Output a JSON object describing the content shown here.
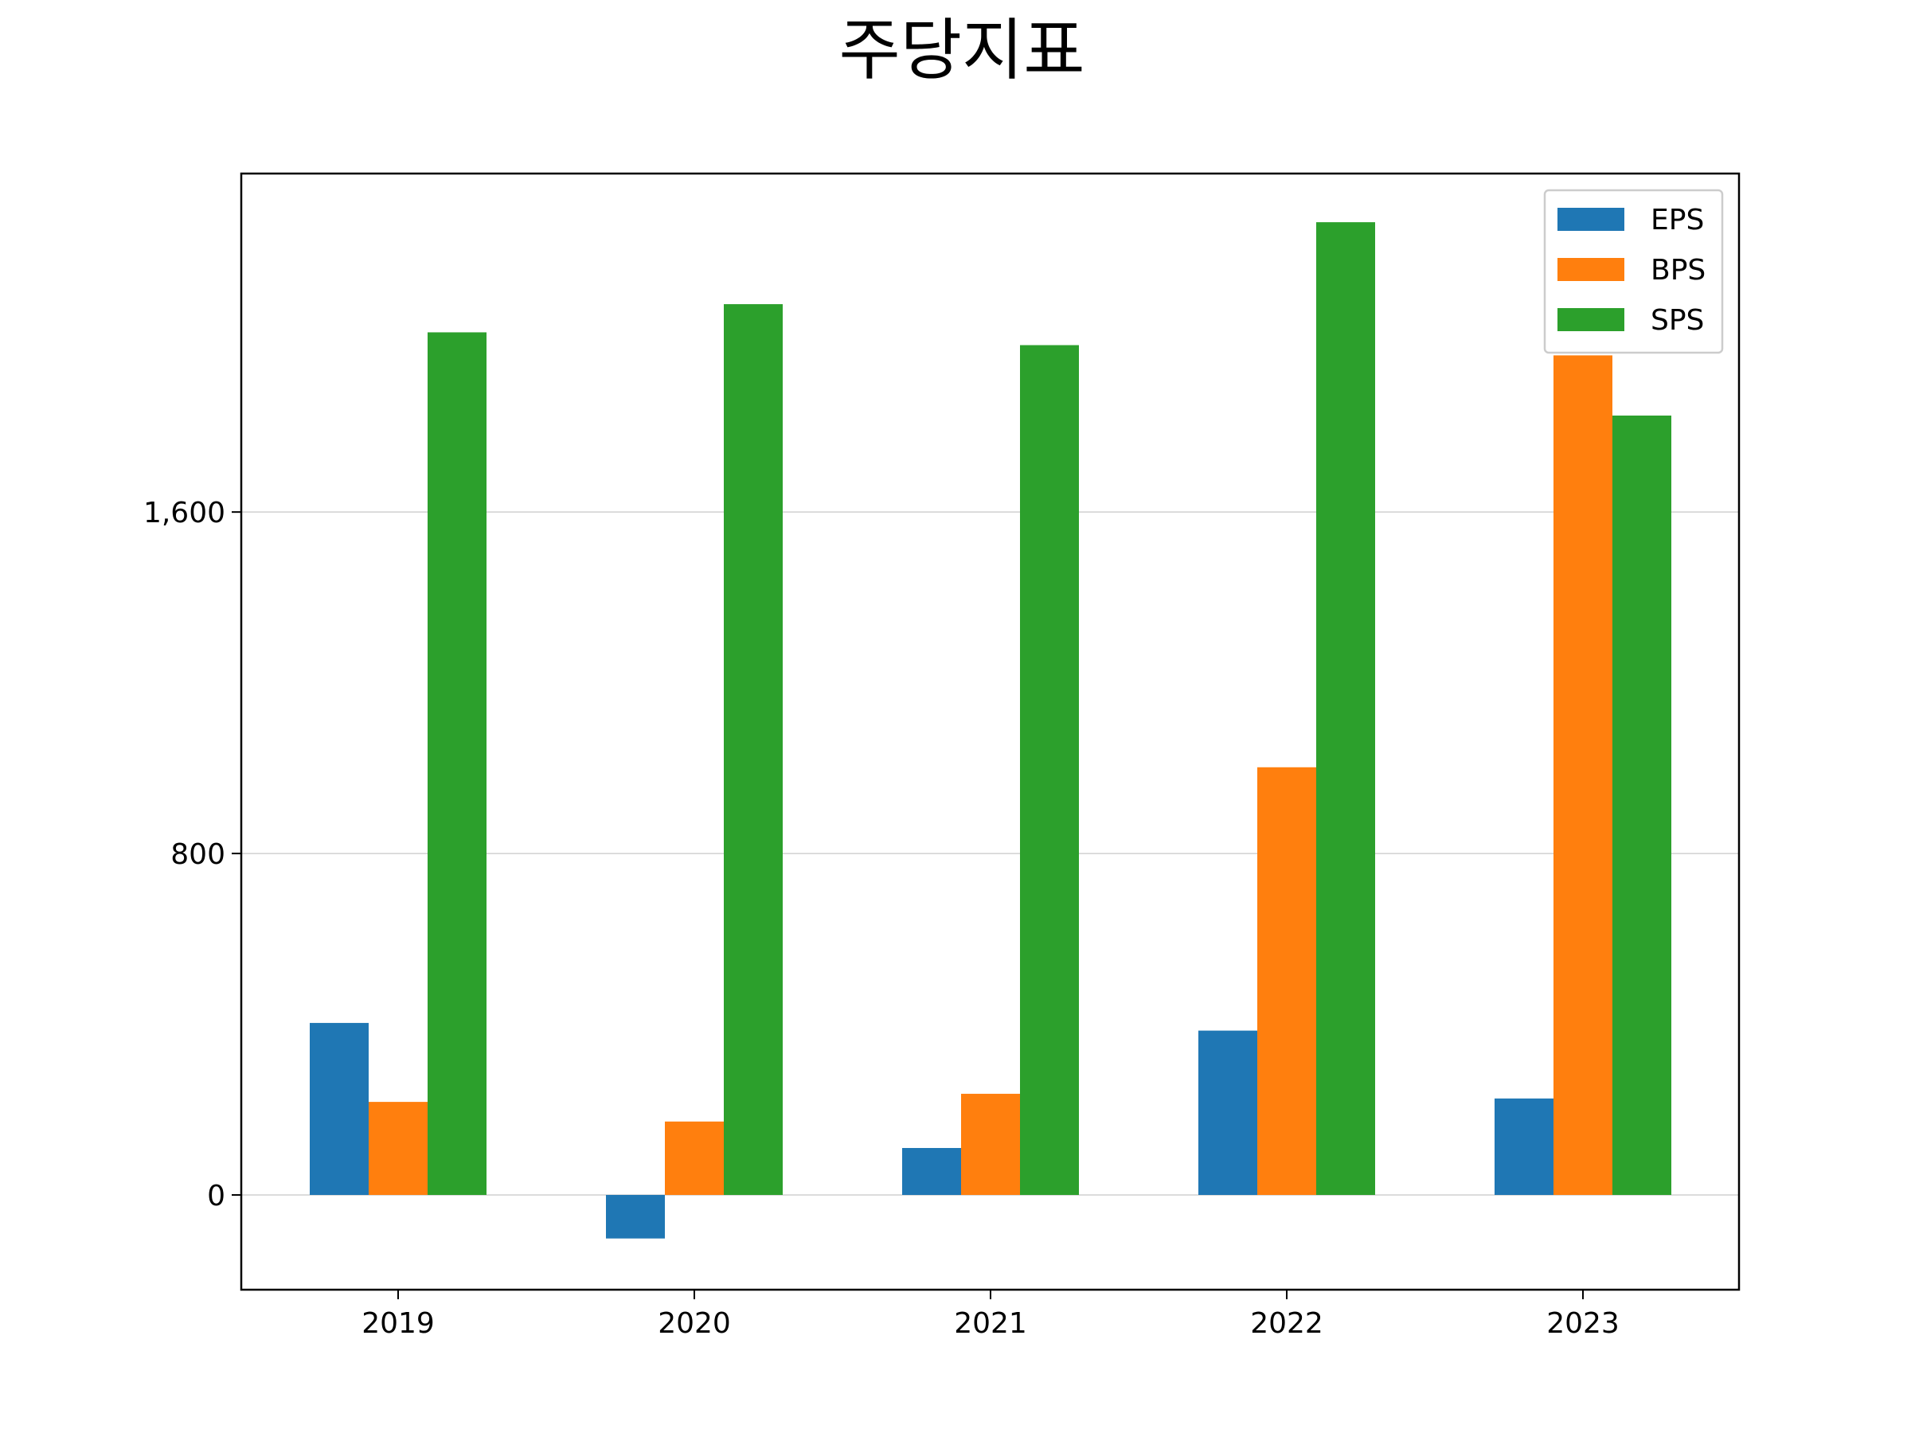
{
  "chart_data": {
    "type": "bar",
    "title": "주당지표",
    "xlabel": "",
    "ylabel": "",
    "categories": [
      "2019",
      "2020",
      "2021",
      "2022",
      "2023"
    ],
    "series": [
      {
        "name": "EPS",
        "color": "#1f77b4",
        "values": [
          403,
          -102,
          110,
          385,
          226
        ]
      },
      {
        "name": "BPS",
        "color": "#ff7f0e",
        "values": [
          218,
          172,
          237,
          1002,
          1967
        ]
      },
      {
        "name": "SPS",
        "color": "#2ca02c",
        "values": [
          2021,
          2087,
          1991,
          2279,
          1826
        ]
      }
    ],
    "yticks": [
      0,
      800,
      1600
    ],
    "ytick_labels": [
      "0",
      "800",
      "1,600"
    ],
    "ylim": [
      -222,
      2393
    ],
    "grid": "y",
    "legend_position": "top-right"
  }
}
